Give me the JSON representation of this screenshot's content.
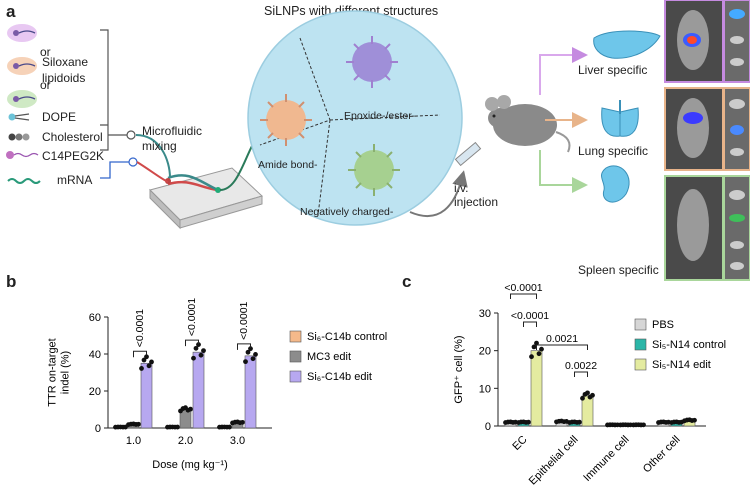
{
  "panel_a": {
    "label": "a",
    "center_title": "SiLNPs with different structures",
    "components": [
      {
        "label": "or"
      },
      {
        "label": "or"
      },
      {
        "label": "Siloxane\nlipidoids"
      },
      {
        "label": "DOPE"
      },
      {
        "label": "Cholesterol"
      },
      {
        "label": "C14PEG2K"
      },
      {
        "label": "mRNA"
      }
    ],
    "mixing_label": "Microfluidic\nmixing",
    "structures": [
      "Epoxide-/ester-",
      "Amide bond-",
      "Negatively charged-"
    ],
    "injection_label": "i.v.\ninjection",
    "targets": [
      "Liver specific",
      "Lung specific",
      "Spleen specific"
    ],
    "colors": {
      "liver": "#c58be0",
      "lung": "#e8b48a",
      "spleen": "#a9d69b",
      "organ": "#6ec6ea",
      "sphere": "#b9e2f0"
    }
  },
  "panel_b": {
    "label": "b",
    "chart_data": {
      "type": "bar",
      "ylabel": "TTR on-target\nindel (%)",
      "xlabel": "Dose (mg kg⁻¹)",
      "categories": [
        "1.0",
        "2.0",
        "3.0"
      ],
      "ylim": [
        0,
        60
      ],
      "yticks": [
        0,
        20,
        40,
        60
      ],
      "series": [
        {
          "name": "Si6-C14b control",
          "legend": "Si₆-C14b control",
          "color": "#f5b98a",
          "values": [
            0.5,
            0.5,
            0.5
          ]
        },
        {
          "name": "MC3 edit",
          "legend": "MC3 edit",
          "color": "#8c8c8c",
          "values": [
            2,
            10,
            3
          ]
        },
        {
          "name": "Si6-C14b edit",
          "legend": "Si₆-C14b edit",
          "color": "#b7a8f0",
          "values": [
            35,
            41,
            39
          ]
        }
      ],
      "annotations": [
        "<0.0001",
        "<0.0001",
        "<0.0001"
      ]
    }
  },
  "panel_c": {
    "label": "c",
    "chart_data": {
      "type": "bar",
      "ylabel": "GFP⁺ cell (%)",
      "categories": [
        "EC",
        "Epithelial cell",
        "Immune cell",
        "Other cell"
      ],
      "ylim": [
        0,
        30
      ],
      "yticks": [
        0,
        10,
        20,
        30
      ],
      "series": [
        {
          "name": "PBS",
          "legend": "PBS",
          "color": "#d6d6d6",
          "values": [
            1,
            1.2,
            0.3,
            1
          ]
        },
        {
          "name": "Si5-N14 control",
          "legend": "Si₅-N14 control",
          "color": "#2bb6a8",
          "values": [
            1,
            1,
            0.3,
            1
          ]
        },
        {
          "name": "Si5-N14 edit",
          "legend": "Si₅-N14 edit",
          "color": "#e4eba0",
          "values": [
            20,
            8,
            0.3,
            1.5
          ]
        }
      ],
      "annotations": [
        "<0.0001",
        "<0.0001",
        "0.0021",
        "0.0022"
      ]
    }
  }
}
